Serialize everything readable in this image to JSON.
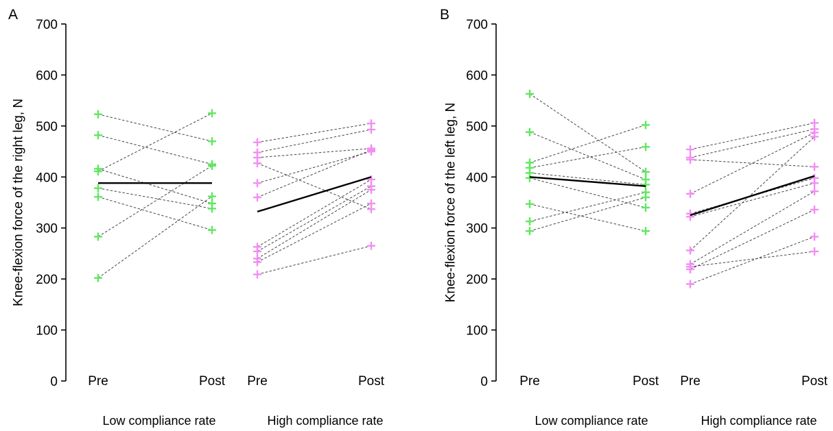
{
  "colors": {
    "low_group": "#5fe85f",
    "high_group": "#f28ef2",
    "mean_line": "#000000",
    "individual_line": "#444444"
  },
  "chart_data": [
    {
      "type": "line",
      "panel": "A",
      "ylabel": "Knee-flexion force of the right leg, N",
      "ylim": [
        0,
        700
      ],
      "yticks": [
        0,
        100,
        200,
        300,
        400,
        500,
        600,
        700
      ],
      "conditions": [
        "Pre",
        "Post",
        "Pre",
        "Post"
      ],
      "groups": [
        {
          "label": "Low compliance rate",
          "marker_color": "#5fe85f",
          "mean": {
            "pre": 388,
            "post": 388
          },
          "subjects": [
            {
              "pre": 523,
              "post": 470
            },
            {
              "pre": 482,
              "post": 425
            },
            {
              "pre": 416,
              "post": 348
            },
            {
              "pre": 411,
              "post": 525
            },
            {
              "pre": 378,
              "post": 338
            },
            {
              "pre": 361,
              "post": 296
            },
            {
              "pre": 283,
              "post": 422
            },
            {
              "pre": 202,
              "post": 362
            }
          ]
        },
        {
          "label": "High compliance rate",
          "marker_color": "#f28ef2",
          "mean": {
            "pre": 332,
            "post": 400
          },
          "subjects": [
            {
              "pre": 468,
              "post": 505
            },
            {
              "pre": 448,
              "post": 493
            },
            {
              "pre": 438,
              "post": 456
            },
            {
              "pre": 427,
              "post": 337
            },
            {
              "pre": 388,
              "post": 450
            },
            {
              "pre": 360,
              "post": 453
            },
            {
              "pre": 263,
              "post": 395
            },
            {
              "pre": 254,
              "post": 382
            },
            {
              "pre": 240,
              "post": 375
            },
            {
              "pre": 233,
              "post": 348
            },
            {
              "pre": 209,
              "post": 265
            }
          ]
        }
      ]
    },
    {
      "type": "line",
      "panel": "B",
      "ylabel": "Knee-flexion force of the left leg, N",
      "ylim": [
        0,
        700
      ],
      "yticks": [
        0,
        100,
        200,
        300,
        400,
        500,
        600,
        700
      ],
      "conditions": [
        "Pre",
        "Post",
        "Pre",
        "Post"
      ],
      "groups": [
        {
          "label": "Low compliance rate",
          "marker_color": "#5fe85f",
          "mean": {
            "pre": 400,
            "post": 382
          },
          "subjects": [
            {
              "pre": 563,
              "post": 410
            },
            {
              "pre": 488,
              "post": 395
            },
            {
              "pre": 428,
              "post": 502
            },
            {
              "pre": 418,
              "post": 459
            },
            {
              "pre": 408,
              "post": 385
            },
            {
              "pre": 398,
              "post": 340
            },
            {
              "pre": 347,
              "post": 294
            },
            {
              "pre": 313,
              "post": 370
            },
            {
              "pre": 294,
              "post": 360
            }
          ]
        },
        {
          "label": "High compliance rate",
          "marker_color": "#f28ef2",
          "mean": {
            "pre": 325,
            "post": 402
          },
          "subjects": [
            {
              "pre": 454,
              "post": 506
            },
            {
              "pre": 438,
              "post": 494
            },
            {
              "pre": 434,
              "post": 420
            },
            {
              "pre": 367,
              "post": 487
            },
            {
              "pre": 328,
              "post": 398
            },
            {
              "pre": 322,
              "post": 388
            },
            {
              "pre": 256,
              "post": 479
            },
            {
              "pre": 229,
              "post": 372
            },
            {
              "pre": 219,
              "post": 336
            },
            {
              "pre": 190,
              "post": 283
            },
            {
              "pre": 224,
              "post": 254
            }
          ]
        }
      ]
    }
  ]
}
